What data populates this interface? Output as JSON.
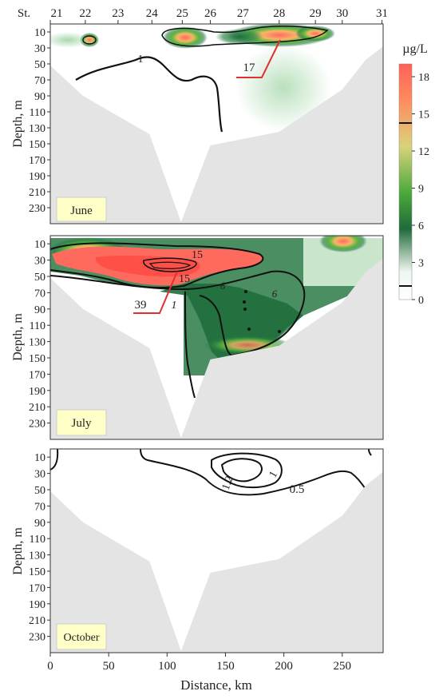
{
  "chart_data": [
    {
      "type": "heatmap",
      "panel_label": "June",
      "ylabel": "Depth, m",
      "x_top_label": "St.",
      "stations": [
        "21",
        "22",
        "23",
        "24",
        "25",
        "26",
        "27",
        "28",
        "29",
        "30",
        "31"
      ],
      "station_km": [
        0,
        30,
        58,
        87,
        113,
        137,
        165,
        196,
        227,
        250,
        284
      ],
      "yticks": [
        10,
        30,
        50,
        70,
        90,
        110,
        130,
        150,
        170,
        190,
        210,
        230
      ],
      "ylim": [
        250,
        0
      ],
      "xlim": [
        0,
        285
      ],
      "bottom_depth_profile": {
        "x": [
          0,
          28,
          85,
          112,
          137,
          196,
          250,
          270,
          285
        ],
        "depth": [
          52,
          90,
          138,
          248,
          152,
          135,
          82,
          45,
          28
        ]
      },
      "hotspots": [
        {
          "x": 33,
          "depth": 18,
          "value": 14
        },
        {
          "x": 113,
          "depth": 17,
          "value": 18
        },
        {
          "x": 140,
          "depth": 15,
          "value": 6
        },
        {
          "x": 185,
          "depth": 12,
          "value": 12
        },
        {
          "x": 198,
          "depth": 8,
          "value": 19
        },
        {
          "x": 225,
          "depth": 10,
          "value": 12
        }
      ],
      "contour_labels": [
        {
          "text": "1",
          "x": 75,
          "depth": 50
        },
        {
          "text": "17",
          "x": 170,
          "depth": 56
        }
      ]
    },
    {
      "type": "heatmap",
      "panel_label": "July",
      "ylabel": "Depth, m",
      "yticks": [
        10,
        30,
        50,
        70,
        90,
        110,
        130,
        150,
        170,
        190,
        210,
        230
      ],
      "ylim": [
        250,
        0
      ],
      "xlim": [
        0,
        285
      ],
      "hotspots": [
        {
          "x": 25,
          "depth": 18,
          "value": 18
        },
        {
          "x": 90,
          "depth": 30,
          "value": 19
        },
        {
          "x": 125,
          "depth": 38,
          "value": 19
        },
        {
          "x": 160,
          "depth": 20,
          "value": 16
        },
        {
          "x": 250,
          "depth": 8,
          "value": 12
        },
        {
          "x": 175,
          "depth": 130,
          "value": 12
        }
      ],
      "contour_labels": [
        {
          "text": "15",
          "x": 128,
          "depth": 24
        },
        {
          "text": "15",
          "x": 115,
          "depth": 50
        },
        {
          "text": "39",
          "x": 78,
          "depth": 82
        },
        {
          "text": "1",
          "x": 105,
          "depth": 82
        },
        {
          "text": "6",
          "x": 148,
          "depth": 57
        },
        {
          "text": "6",
          "x": 196,
          "depth": 67
        }
      ]
    },
    {
      "type": "heatmap",
      "panel_label": "October",
      "ylabel": "Depth, m",
      "xlabel": "Distance, km",
      "xticks": [
        0,
        50,
        100,
        150,
        200,
        250
      ],
      "yticks": [
        10,
        30,
        50,
        70,
        90,
        110,
        130,
        150,
        170,
        190,
        210,
        230
      ],
      "ylim": [
        250,
        0
      ],
      "xlim": [
        0,
        285
      ],
      "hotspots": [],
      "contour_labels": [
        {
          "text": "1.2",
          "x": 172,
          "depth": 33
        },
        {
          "text": "1",
          "x": 190,
          "depth": 30
        },
        {
          "text": "0.5",
          "x": 208,
          "depth": 45
        }
      ]
    }
  ],
  "colorbar": {
    "unit": "µg/L",
    "ticks": [
      "18",
      "15",
      "12",
      "9",
      "6",
      "3",
      "0"
    ],
    "colors": [
      "#ffffff",
      "#ffffff",
      "#1d6b3a",
      "#5fb33a",
      "#e8c46a",
      "#ff6a5e"
    ]
  }
}
